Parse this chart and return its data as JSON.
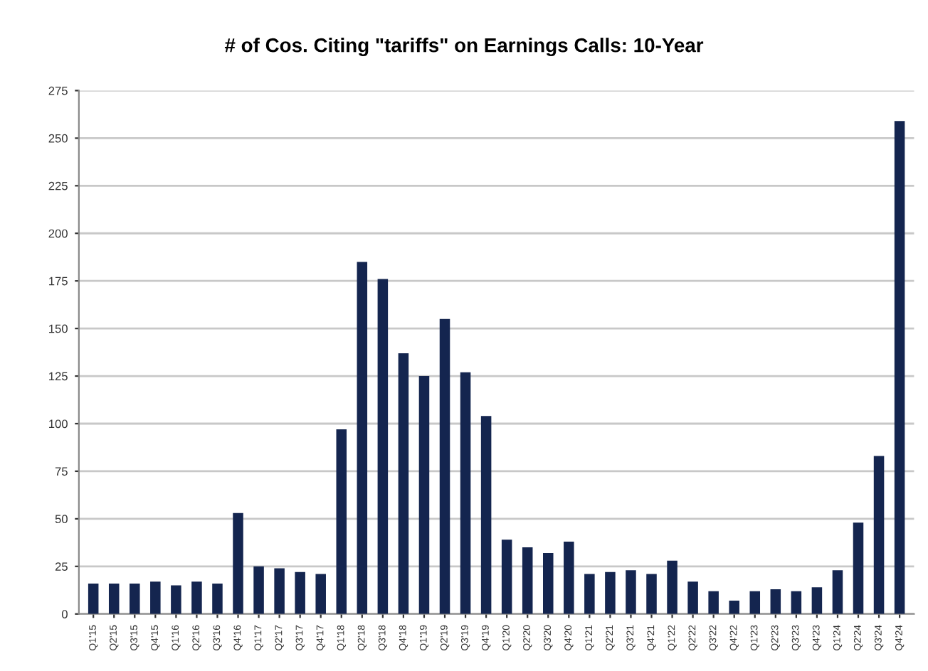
{
  "chart_data": {
    "type": "bar",
    "title": "# of Cos. Citing \"tariffs\" on Earnings Calls: 10-Year",
    "categories": [
      "Q1'15",
      "Q2'15",
      "Q3'15",
      "Q4'15",
      "Q1'16",
      "Q2'16",
      "Q3'16",
      "Q4'16",
      "Q1'17",
      "Q2'17",
      "Q3'17",
      "Q4'17",
      "Q1'18",
      "Q2'18",
      "Q3'18",
      "Q4'18",
      "Q1'19",
      "Q2'19",
      "Q3'19",
      "Q4'19",
      "Q1'20",
      "Q2'20",
      "Q3'20",
      "Q4'20",
      "Q1'21",
      "Q2'21",
      "Q3'21",
      "Q4'21",
      "Q1'22",
      "Q2'22",
      "Q3'22",
      "Q4'22",
      "Q1'23",
      "Q2'23",
      "Q3'23",
      "Q4'23",
      "Q1'24",
      "Q2'24",
      "Q3'24",
      "Q4'24"
    ],
    "values": [
      16,
      16,
      16,
      17,
      15,
      17,
      16,
      53,
      25,
      24,
      22,
      21,
      97,
      185,
      176,
      137,
      125,
      155,
      127,
      104,
      39,
      35,
      32,
      38,
      21,
      22,
      23,
      21,
      28,
      17,
      12,
      7,
      12,
      13,
      12,
      14,
      23,
      48,
      83,
      259
    ],
    "color": "#14254f",
    "ylim": [
      0,
      275
    ],
    "yticks": [
      0,
      25,
      50,
      75,
      100,
      125,
      150,
      175,
      200,
      225,
      250,
      275
    ],
    "grid": "y"
  }
}
